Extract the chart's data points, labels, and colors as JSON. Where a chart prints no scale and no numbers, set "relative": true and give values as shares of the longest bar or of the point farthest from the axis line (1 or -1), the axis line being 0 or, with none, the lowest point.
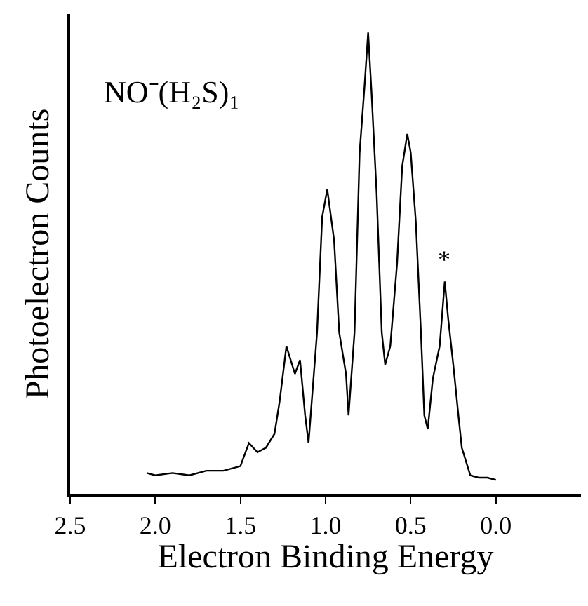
{
  "chart_data": {
    "type": "line",
    "relative": true,
    "xlabel": "Electron Binding Energy",
    "ylabel": "Photoelectron Counts",
    "xlim": [
      2.5,
      -0.5
    ],
    "xticks": [
      2.5,
      {
        "value": 2.0,
        "label": "2.0"
      },
      1.5,
      {
        "value": 1.0,
        "label": "1.0"
      },
      0.5,
      {
        "value": 0.0,
        "label": "0.0"
      }
    ],
    "annotations": [
      "NO⁻(H₂S)₁",
      {
        "text": "*",
        "x": 0.3,
        "y": 0.46
      }
    ],
    "series": [
      {
        "color": "#000000",
        "x": [
          2.05,
          2.0,
          1.9,
          1.8,
          1.7,
          1.6,
          1.5,
          1.45,
          1.4,
          1.35,
          1.3,
          1.27,
          1.23,
          1.18,
          1.15,
          1.12,
          1.1,
          1.05,
          1.02,
          0.99,
          0.95,
          0.92,
          0.88,
          0.865,
          0.83,
          0.8,
          0.77,
          0.75,
          0.73,
          0.7,
          0.67,
          0.65,
          0.62,
          0.58,
          0.55,
          0.52,
          0.5,
          0.47,
          0.44,
          0.42,
          0.4,
          0.37,
          0.33,
          0.3,
          0.28,
          0.25,
          0.22,
          0.2,
          0.15,
          0.1,
          0.05,
          0.0
        ],
        "values": [
          0.045,
          0.04,
          0.045,
          0.04,
          0.05,
          0.05,
          0.06,
          0.11,
          0.09,
          0.1,
          0.13,
          0.2,
          0.32,
          0.26,
          0.29,
          0.17,
          0.11,
          0.35,
          0.6,
          0.66,
          0.55,
          0.35,
          0.26,
          0.17,
          0.35,
          0.74,
          0.89,
          1.0,
          0.87,
          0.65,
          0.35,
          0.28,
          0.32,
          0.5,
          0.71,
          0.78,
          0.74,
          0.59,
          0.35,
          0.17,
          0.14,
          0.25,
          0.32,
          0.46,
          0.38,
          0.28,
          0.17,
          0.1,
          0.04,
          0.035,
          0.035,
          0.03
        ]
      }
    ]
  }
}
